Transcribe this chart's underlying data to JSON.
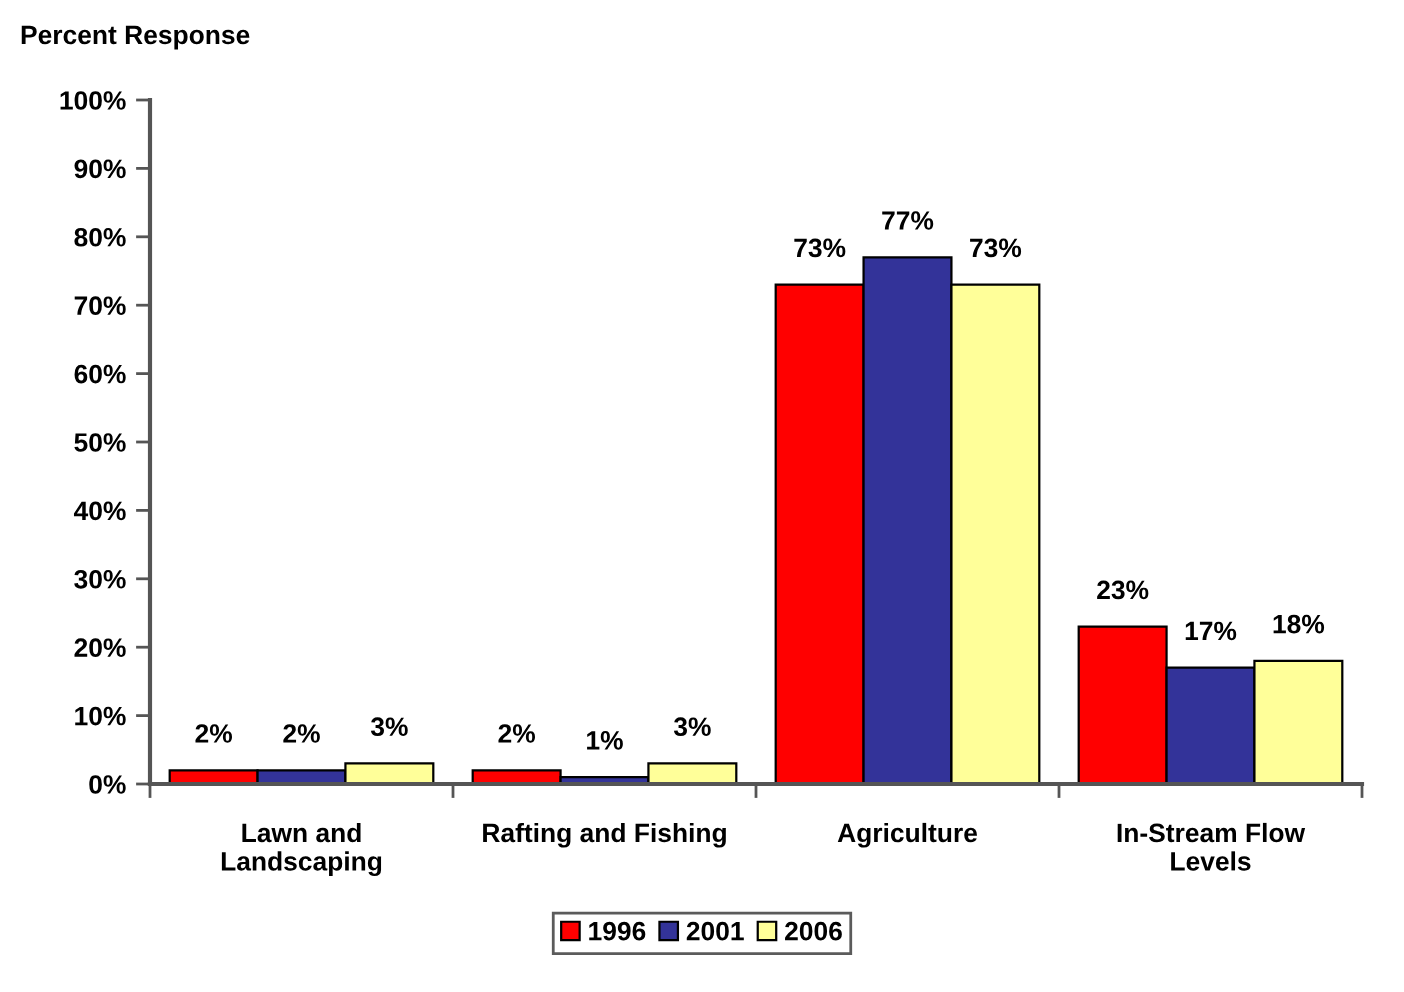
{
  "chart_data": {
    "type": "bar",
    "ylabel": "Percent Response",
    "categories": [
      "Lawn and\nLandscaping",
      "Rafting and Fishing",
      "Agriculture",
      "In-Stream Flow\nLevels"
    ],
    "series": [
      {
        "name": "1996",
        "color": "#ff0000",
        "values": [
          2,
          2,
          73,
          23
        ],
        "value_labels": [
          "2%",
          "2%",
          "73%",
          "23%"
        ]
      },
      {
        "name": "2001",
        "color": "#333399",
        "values": [
          2,
          1,
          77,
          17
        ],
        "value_labels": [
          "2%",
          "1%",
          "77%",
          "17%"
        ]
      },
      {
        "name": "2006",
        "color": "#ffff99",
        "values": [
          3,
          3,
          73,
          18
        ],
        "value_labels": [
          "3%",
          "3%",
          "73%",
          "18%"
        ]
      }
    ],
    "ylim": [
      0,
      100
    ],
    "yticks": [
      {
        "value": 0,
        "label": "0%"
      },
      {
        "value": 10,
        "label": "10%"
      },
      {
        "value": 20,
        "label": "20%"
      },
      {
        "value": 30,
        "label": "30%"
      },
      {
        "value": 40,
        "label": "40%"
      },
      {
        "value": 50,
        "label": "50%"
      },
      {
        "value": 60,
        "label": "60%"
      },
      {
        "value": 70,
        "label": "70%"
      },
      {
        "value": 80,
        "label": "80%"
      },
      {
        "value": 90,
        "label": "90%"
      },
      {
        "value": 100,
        "label": "100%"
      }
    ],
    "grid": false,
    "legend": "bottom"
  }
}
